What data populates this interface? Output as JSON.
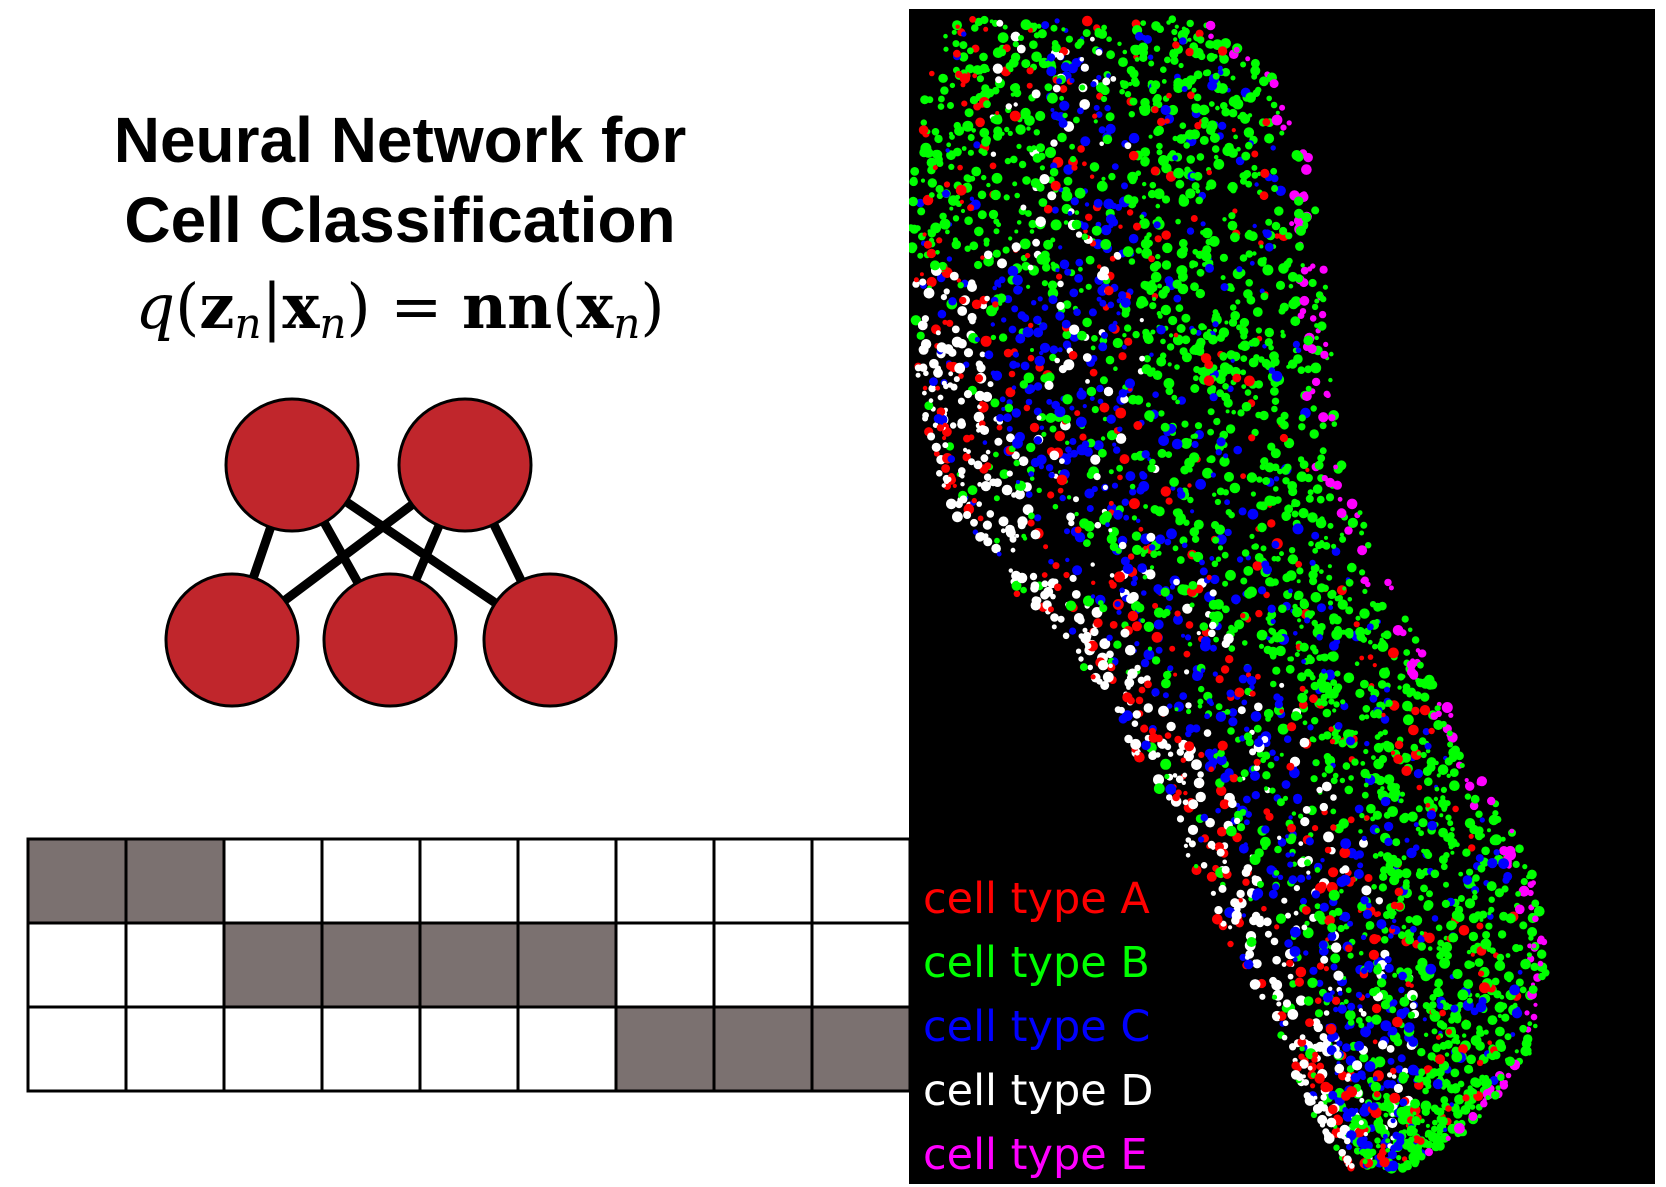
{
  "title": {
    "line1": "Neural Network for",
    "line2": "Cell Classification"
  },
  "formula": {
    "q": "q",
    "open": "(",
    "z": "z",
    "n1": "n",
    "bar": "|",
    "x1": "x",
    "n2": "n",
    "close_eq": ") = ",
    "nn": "nn",
    "open2": "(",
    "x2": "x",
    "n3": "n",
    "close2": ")"
  },
  "network": {
    "node_color": "#c0262c",
    "top_layer_nodes": 2,
    "bottom_layer_nodes": 3
  },
  "grid": {
    "fill_color": "#7b7170",
    "rows": [
      [
        1,
        1,
        0,
        0,
        0,
        0,
        0,
        0,
        0
      ],
      [
        0,
        0,
        1,
        1,
        1,
        1,
        0,
        0,
        0
      ],
      [
        0,
        0,
        0,
        0,
        0,
        0,
        1,
        1,
        1
      ]
    ]
  },
  "tissue_map": {
    "background": "#000000",
    "legend": [
      {
        "label": "cell type A",
        "color": "#ff0000"
      },
      {
        "label": "cell type B",
        "color": "#00ff00"
      },
      {
        "label": "cell type C",
        "color": "#0000ff"
      },
      {
        "label": "cell type D",
        "color": "#ffffff"
      },
      {
        "label": "cell type E",
        "color": "#ff00ff"
      }
    ]
  }
}
